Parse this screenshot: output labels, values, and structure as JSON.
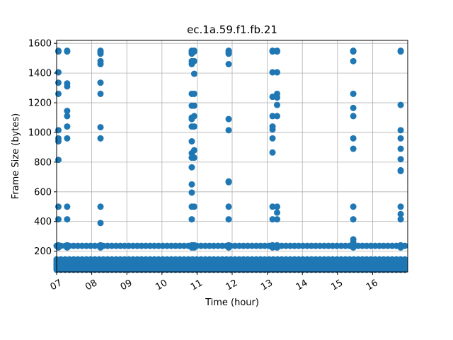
{
  "chart_data": {
    "type": "scatter",
    "title": "ec.1a.59.f1.fb.21",
    "xlabel": "Time (hour)",
    "ylabel": "Frame Size (bytes)",
    "xlim": [
      7.0,
      17.0
    ],
    "ylim": [
      60,
      1620
    ],
    "x_ticks": [
      7,
      8,
      9,
      10,
      11,
      12,
      13,
      14,
      15,
      16
    ],
    "x_tick_labels": [
      "07",
      "08",
      "09",
      "10",
      "11",
      "12",
      "13",
      "14",
      "15",
      "16"
    ],
    "y_ticks": [
      200,
      400,
      600,
      800,
      1000,
      1200,
      1400,
      1600
    ],
    "grid": true,
    "color": "#1f77b4",
    "baseline": {
      "x_range": [
        7.0,
        17.0
      ],
      "y_band": [
        70,
        150
      ],
      "row_values": [
        75,
        85,
        95,
        105,
        115,
        125,
        135,
        145
      ],
      "line_value": 236
    },
    "bursts": [
      {
        "x": 7.05,
        "values": [
          1550,
          1545,
          1405,
          1335,
          1260,
          1015,
          960,
          940,
          815,
          500,
          415,
          240,
          225
        ]
      },
      {
        "x": 7.3,
        "values": [
          1550,
          1545,
          1330,
          1310,
          1145,
          1110,
          1040,
          960,
          500,
          415,
          240,
          225
        ]
      },
      {
        "x": 8.25,
        "values": [
          1550,
          1540,
          1530,
          1480,
          1460,
          1335,
          1260,
          1035,
          960,
          500,
          390,
          240,
          225
        ]
      },
      {
        "x": 10.85,
        "values": [
          1550,
          1540,
          1530,
          1480,
          1460,
          1260,
          1180,
          1100,
          1090,
          1040,
          940,
          860,
          830,
          765,
          650,
          595,
          500,
          415,
          240,
          225
        ]
      },
      {
        "x": 10.92,
        "values": [
          1550,
          1545,
          1480,
          1395,
          1260,
          1180,
          1110,
          1040,
          880,
          830,
          500,
          240,
          225
        ]
      },
      {
        "x": 11.9,
        "values": [
          1550,
          1540,
          1530,
          1460,
          1090,
          1015,
          670,
          665,
          500,
          415,
          240,
          225
        ]
      },
      {
        "x": 13.15,
        "values": [
          1550,
          1545,
          1405,
          1240,
          1110,
          1040,
          1020,
          960,
          865,
          500,
          415,
          240,
          225
        ]
      },
      {
        "x": 13.28,
        "values": [
          1550,
          1545,
          1405,
          1260,
          1235,
          1185,
          1110,
          500,
          460,
          415,
          240,
          225
        ]
      },
      {
        "x": 15.45,
        "values": [
          1550,
          1545,
          1480,
          1260,
          1165,
          1110,
          960,
          890,
          500,
          415,
          280,
          260,
          240,
          225
        ]
      },
      {
        "x": 16.8,
        "values": [
          1550,
          1545,
          1185,
          1015,
          960,
          890,
          820,
          745,
          740,
          500,
          450,
          415,
          240,
          225
        ]
      }
    ]
  }
}
